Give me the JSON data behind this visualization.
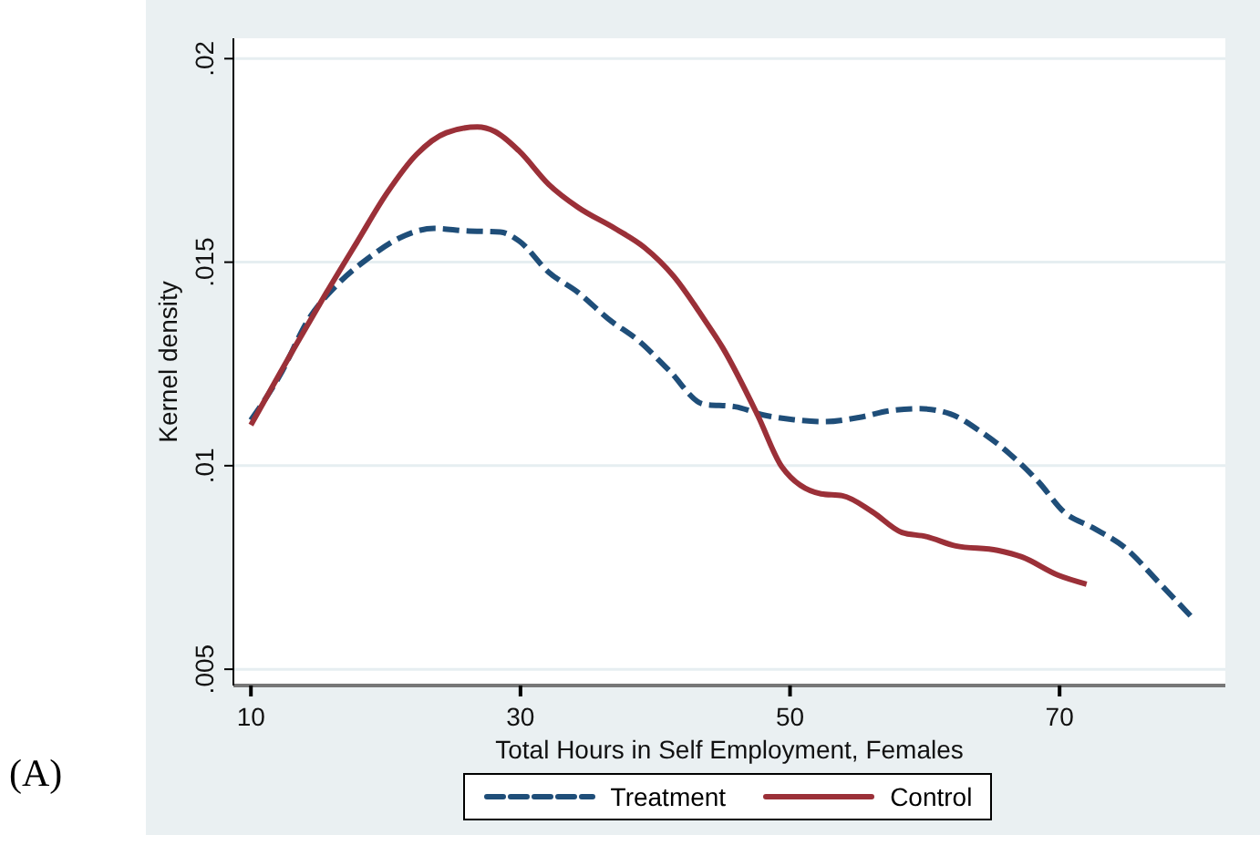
{
  "chart_data": {
    "type": "line",
    "xlabel": "Total Hours in Self Employment, Females",
    "ylabel": "Kernel density",
    "xlim": [
      8.7,
      82.3
    ],
    "ylim": [
      0.0046,
      0.0205
    ],
    "xticks": [
      10,
      30,
      50,
      70
    ],
    "yticks": [
      {
        "value": 0.005,
        "label": ".005"
      },
      {
        "value": 0.01,
        "label": ".01"
      },
      {
        "value": 0.015,
        "label": ".015"
      },
      {
        "value": 0.02,
        "label": ".02"
      }
    ],
    "grid": "y",
    "legend": "bottom",
    "marker": "none",
    "annotations": [
      "(A)"
    ],
    "series": [
      {
        "name": "Treatment",
        "color": "#1f4e79",
        "line_style": "dashed",
        "x": [
          10,
          12.1,
          14.3,
          16.5,
          18.8,
          21.0,
          23.6,
          25.9,
          28.5,
          29.9,
          32.1,
          34.3,
          36.5,
          38.8,
          41.0,
          43.6,
          45.9,
          48.1,
          50.3,
          52.5,
          55.2,
          57.4,
          59.6,
          61.9,
          64.1,
          66.3,
          68.5,
          70.3,
          72.5,
          74.8,
          77.4,
          80.0
        ],
        "values": [
          0.01112,
          0.01219,
          0.01361,
          0.01448,
          0.01512,
          0.01559,
          0.01583,
          0.01577,
          0.01574,
          0.01552,
          0.01475,
          0.01425,
          0.01361,
          0.01306,
          0.01235,
          0.01151,
          0.01145,
          0.01124,
          0.01113,
          0.01108,
          0.01119,
          0.01135,
          0.0114,
          0.01127,
          0.01085,
          0.01029,
          0.00958,
          0.00887,
          0.00847,
          0.008,
          0.00712,
          0.00621
        ]
      },
      {
        "name": "Control",
        "color": "#9b3038",
        "line_style": "solid",
        "x": [
          10,
          13.4,
          15.6,
          17.9,
          20.1,
          22.3,
          24.5,
          26.8,
          28.1,
          29.9,
          32.1,
          34.3,
          37.0,
          39.2,
          41.4,
          43.6,
          45.0,
          47.6,
          49.4,
          52.3,
          53.9,
          56.1,
          58.3,
          60.1,
          62.3,
          65.4,
          67.2,
          69.9,
          72.0
        ],
        "values": [
          0.011,
          0.013,
          0.01425,
          0.01551,
          0.0167,
          0.01765,
          0.01818,
          0.01832,
          0.01821,
          0.01773,
          0.01691,
          0.01634,
          0.01583,
          0.01536,
          0.01464,
          0.01361,
          0.0129,
          0.01124,
          0.00997,
          0.00931,
          0.00926,
          0.00887,
          0.00836,
          0.00826,
          0.00803,
          0.00792,
          0.00776,
          0.00731,
          0.00709
        ]
      }
    ]
  }
}
